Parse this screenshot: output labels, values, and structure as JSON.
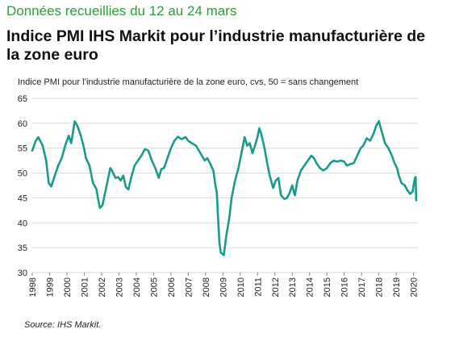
{
  "header": {
    "top_note": "Données recueillies du 12 au 24 mars",
    "title": "Indice PMI IHS Markit pour l’industrie manufacturière de la zone euro"
  },
  "footer": {
    "source": "Source: IHS Markit."
  },
  "colors": {
    "line": "#1a9a8c",
    "grid": "#d9d9d9",
    "note": "#2e9b3c"
  },
  "chart_data": {
    "type": "line",
    "subtitle": "Indice PMI pour l’industrie manufacturière de la zone euro, cvs, 50 = sans changement",
    "ylim": [
      30,
      65
    ],
    "yticks": [
      30,
      35,
      40,
      45,
      50,
      55,
      60,
      65
    ],
    "xlim": [
      1998,
      2020.25
    ],
    "xticks": [
      "1998",
      "1999",
      "2000",
      "2001",
      "2002",
      "2003",
      "2004",
      "2005",
      "2006",
      "2007",
      "2008",
      "2009",
      "2010",
      "2011",
      "2012",
      "2013",
      "2014",
      "2015",
      "2016",
      "2017",
      "2018",
      "2019",
      "2020"
    ],
    "grid": "horizontal",
    "series": [
      {
        "points": [
          [
            1998.0,
            54.5
          ],
          [
            1998.2,
            56.5
          ],
          [
            1998.35,
            57.2
          ],
          [
            1998.6,
            55.5
          ],
          [
            1998.8,
            52.5
          ],
          [
            1998.95,
            48
          ],
          [
            1999.1,
            47.3
          ],
          [
            1999.3,
            49.5
          ],
          [
            1999.5,
            51.5
          ],
          [
            1999.7,
            53
          ],
          [
            1999.9,
            55.5
          ],
          [
            2000.1,
            57.5
          ],
          [
            2000.25,
            56
          ],
          [
            2000.45,
            60.4
          ],
          [
            2000.6,
            59.5
          ],
          [
            2000.8,
            57.5
          ],
          [
            2000.95,
            55.5
          ],
          [
            2001.1,
            53
          ],
          [
            2001.3,
            51.5
          ],
          [
            2001.5,
            48
          ],
          [
            2001.7,
            46.8
          ],
          [
            2001.8,
            44.8
          ],
          [
            2001.9,
            43
          ],
          [
            2002.05,
            43.5
          ],
          [
            2002.2,
            46
          ],
          [
            2002.35,
            48.5
          ],
          [
            2002.5,
            51
          ],
          [
            2002.6,
            50.5
          ],
          [
            2002.8,
            49
          ],
          [
            2002.95,
            49.2
          ],
          [
            2003.1,
            48.5
          ],
          [
            2003.25,
            49.5
          ],
          [
            2003.4,
            47.2
          ],
          [
            2003.55,
            46.7
          ],
          [
            2003.7,
            49
          ],
          [
            2003.9,
            51.5
          ],
          [
            2004.1,
            52.5
          ],
          [
            2004.3,
            53.5
          ],
          [
            2004.5,
            54.8
          ],
          [
            2004.7,
            54.5
          ],
          [
            2004.9,
            52.5
          ],
          [
            2005.1,
            51
          ],
          [
            2005.3,
            49
          ],
          [
            2005.45,
            50.8
          ],
          [
            2005.6,
            51
          ],
          [
            2005.8,
            53
          ],
          [
            2006.0,
            55
          ],
          [
            2006.2,
            56.5
          ],
          [
            2006.4,
            57.3
          ],
          [
            2006.6,
            56.8
          ],
          [
            2006.85,
            57.2
          ],
          [
            2007.0,
            56.5
          ],
          [
            2007.2,
            56
          ],
          [
            2007.45,
            55.5
          ],
          [
            2007.7,
            54
          ],
          [
            2007.95,
            52.5
          ],
          [
            2008.1,
            53
          ],
          [
            2008.25,
            52
          ],
          [
            2008.45,
            50.5
          ],
          [
            2008.55,
            48
          ],
          [
            2008.65,
            46
          ],
          [
            2008.72,
            41
          ],
          [
            2008.8,
            36
          ],
          [
            2008.88,
            34
          ],
          [
            2008.96,
            33.8
          ],
          [
            2009.05,
            33.5
          ],
          [
            2009.2,
            37.5
          ],
          [
            2009.35,
            40.5
          ],
          [
            2009.5,
            45
          ],
          [
            2009.7,
            48.5
          ],
          [
            2009.9,
            51
          ],
          [
            2010.1,
            54.5
          ],
          [
            2010.25,
            57.2
          ],
          [
            2010.4,
            55.5
          ],
          [
            2010.55,
            56
          ],
          [
            2010.7,
            54
          ],
          [
            2010.85,
            55.5
          ],
          [
            2011.0,
            57.3
          ],
          [
            2011.1,
            59
          ],
          [
            2011.2,
            58
          ],
          [
            2011.4,
            55
          ],
          [
            2011.55,
            52
          ],
          [
            2011.7,
            49.5
          ],
          [
            2011.9,
            47
          ],
          [
            2012.05,
            48.5
          ],
          [
            2012.2,
            49
          ],
          [
            2012.35,
            45.5
          ],
          [
            2012.55,
            44.8
          ],
          [
            2012.7,
            45
          ],
          [
            2012.85,
            46
          ],
          [
            2013.0,
            47.5
          ],
          [
            2013.15,
            45.5
          ],
          [
            2013.3,
            48.5
          ],
          [
            2013.5,
            50.5
          ],
          [
            2013.7,
            51.5
          ],
          [
            2013.9,
            52.5
          ],
          [
            2014.1,
            53.5
          ],
          [
            2014.25,
            53
          ],
          [
            2014.4,
            52
          ],
          [
            2014.6,
            51
          ],
          [
            2014.8,
            50.5
          ],
          [
            2015.0,
            51
          ],
          [
            2015.2,
            52
          ],
          [
            2015.4,
            52.5
          ],
          [
            2015.6,
            52.3
          ],
          [
            2015.8,
            52.5
          ],
          [
            2016.0,
            52.3
          ],
          [
            2016.15,
            51.5
          ],
          [
            2016.35,
            51.8
          ],
          [
            2016.55,
            52
          ],
          [
            2016.75,
            53.5
          ],
          [
            2016.95,
            55
          ],
          [
            2017.1,
            55.5
          ],
          [
            2017.3,
            57
          ],
          [
            2017.5,
            56.5
          ],
          [
            2017.7,
            58
          ],
          [
            2017.85,
            59.5
          ],
          [
            2018.0,
            60.4
          ],
          [
            2018.15,
            58.5
          ],
          [
            2018.35,
            56
          ],
          [
            2018.55,
            55
          ],
          [
            2018.75,
            53.5
          ],
          [
            2018.9,
            52
          ],
          [
            2019.05,
            51
          ],
          [
            2019.15,
            49.5
          ],
          [
            2019.3,
            48
          ],
          [
            2019.5,
            47.5
          ],
          [
            2019.65,
            46.5
          ],
          [
            2019.8,
            45.8
          ],
          [
            2019.95,
            46.3
          ],
          [
            2020.0,
            47.5
          ],
          [
            2020.08,
            49
          ],
          [
            2020.12,
            49.2
          ],
          [
            2020.15,
            44.5
          ]
        ]
      }
    ]
  }
}
